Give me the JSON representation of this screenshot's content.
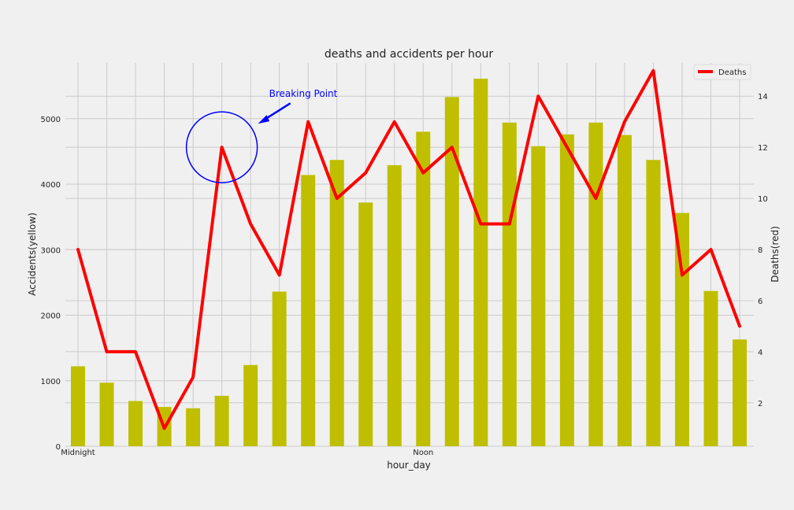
{
  "chart_data": {
    "type": "bar+line",
    "title": "deaths and accidents per hour",
    "xlabel": "hour_day",
    "ylabel_left": "Accidents(yellow)",
    "ylabel_right": "Deaths(red)",
    "x": [
      0,
      1,
      2,
      3,
      4,
      5,
      6,
      7,
      8,
      9,
      10,
      11,
      12,
      13,
      14,
      15,
      16,
      17,
      18,
      19,
      20,
      21,
      22,
      23
    ],
    "xtick_labels": [
      {
        "x": 0,
        "label": "Midnight"
      },
      {
        "x": 12,
        "label": "Noon"
      }
    ],
    "ylim_left": [
      0,
      5850
    ],
    "yticks_left": [
      0,
      1000,
      2000,
      3000,
      4000,
      5000
    ],
    "ylim_right": [
      0.3,
      15.3
    ],
    "yticks_right": [
      2,
      4,
      6,
      8,
      10,
      12,
      14
    ],
    "grid": true,
    "legend_position": "top-right",
    "series": [
      {
        "type": "bar",
        "color": "#bfbf00",
        "axis": "left",
        "values": [
          1220,
          970,
          690,
          600,
          580,
          770,
          1240,
          2360,
          4140,
          4370,
          3720,
          4290,
          4800,
          5330,
          5610,
          4940,
          4580,
          4760,
          4940,
          4750,
          4370,
          3560,
          2370,
          1630
        ]
      },
      {
        "type": "line",
        "name": "Deaths",
        "color": "#ff0000",
        "axis": "right",
        "values": [
          8,
          4,
          4,
          1,
          3,
          12,
          9,
          7,
          13,
          10,
          11,
          13,
          11,
          12,
          9,
          9,
          14,
          12,
          10,
          13,
          15,
          7,
          8,
          5
        ]
      }
    ],
    "annotation": {
      "text": "Breaking Point",
      "color": "#0000ff",
      "target": {
        "x": 5,
        "y": 12
      }
    }
  }
}
